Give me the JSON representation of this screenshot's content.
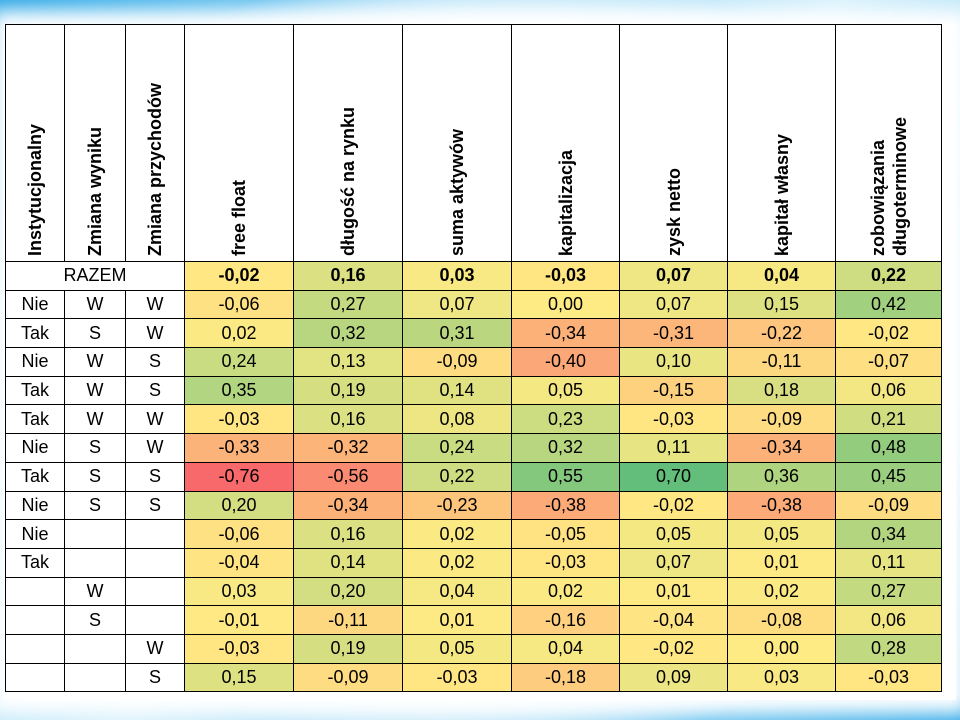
{
  "headers": {
    "instytucjonalny": "Instytucjonalny",
    "zmiana_wyniku": "Zmiana wyniku",
    "zmiana_przychodow": "Zmiana przychodów",
    "metrics": [
      "free float",
      "długość na rynku",
      "suma aktywów",
      "kapitalizacja",
      "zysk netto",
      "kapitał własny",
      "zobowiązania długoterminowe"
    ]
  },
  "total": {
    "label": "RAZEM",
    "values": [
      "-0,02",
      "0,16",
      "0,03",
      "-0,03",
      "0,07",
      "0,04",
      "0,22"
    ]
  },
  "rows": [
    {
      "inst": "Nie",
      "wynik": "W",
      "przych": "W",
      "values": [
        "-0,06",
        "0,27",
        "0,07",
        "0,00",
        "0,07",
        "0,15",
        "0,42"
      ]
    },
    {
      "inst": "Tak",
      "wynik": "S",
      "przych": "W",
      "values": [
        "0,02",
        "0,32",
        "0,31",
        "-0,34",
        "-0,31",
        "-0,22",
        "-0,02"
      ]
    },
    {
      "inst": "Nie",
      "wynik": "W",
      "przych": "S",
      "values": [
        "0,24",
        "0,13",
        "-0,09",
        "-0,40",
        "0,10",
        "-0,11",
        "-0,07"
      ]
    },
    {
      "inst": "Tak",
      "wynik": "W",
      "przych": "S",
      "values": [
        "0,35",
        "0,19",
        "0,14",
        "0,05",
        "-0,15",
        "0,18",
        "0,06"
      ]
    },
    {
      "inst": "Tak",
      "wynik": "W",
      "przych": "W",
      "values": [
        "-0,03",
        "0,16",
        "0,08",
        "0,23",
        "-0,03",
        "-0,09",
        "0,21"
      ]
    },
    {
      "inst": "Nie",
      "wynik": "S",
      "przych": "W",
      "values": [
        "-0,33",
        "-0,32",
        "0,24",
        "0,32",
        "0,11",
        "-0,34",
        "0,48"
      ]
    },
    {
      "inst": "Tak",
      "wynik": "S",
      "przych": "S",
      "values": [
        "-0,76",
        "-0,56",
        "0,22",
        "0,55",
        "0,70",
        "0,36",
        "0,45"
      ]
    },
    {
      "inst": "Nie",
      "wynik": "S",
      "przych": "S",
      "values": [
        "0,20",
        "-0,34",
        "-0,23",
        "-0,38",
        "-0,02",
        "-0,38",
        "-0,09"
      ]
    },
    {
      "inst": "Nie",
      "wynik": "",
      "przych": "",
      "values": [
        "-0,06",
        "0,16",
        "0,02",
        "-0,05",
        "0,05",
        "0,05",
        "0,34"
      ]
    },
    {
      "inst": "Tak",
      "wynik": "",
      "przych": "",
      "values": [
        "-0,04",
        "0,14",
        "0,02",
        "-0,03",
        "0,07",
        "0,01",
        "0,11"
      ]
    },
    {
      "inst": "",
      "wynik": "W",
      "przych": "",
      "values": [
        "0,03",
        "0,20",
        "0,04",
        "0,02",
        "0,01",
        "0,02",
        "0,27"
      ]
    },
    {
      "inst": "",
      "wynik": "S",
      "przych": "",
      "values": [
        "-0,01",
        "-0,11",
        "0,01",
        "-0,16",
        "-0,04",
        "-0,08",
        "0,06"
      ]
    },
    {
      "inst": "",
      "wynik": "",
      "przych": "W",
      "values": [
        "-0,03",
        "0,19",
        "0,05",
        "0,04",
        "-0,02",
        "0,00",
        "0,28"
      ]
    },
    {
      "inst": "",
      "wynik": "",
      "przych": "S",
      "values": [
        "0,15",
        "-0,09",
        "-0,03",
        "-0,18",
        "0,09",
        "0,03",
        "-0,03"
      ]
    }
  ],
  "colors": {
    "strong_negative": "#f8696b",
    "neutral": "#ffeb84",
    "strong_positive": "#63be7b",
    "frame_blue": "#2aa6e6"
  }
}
